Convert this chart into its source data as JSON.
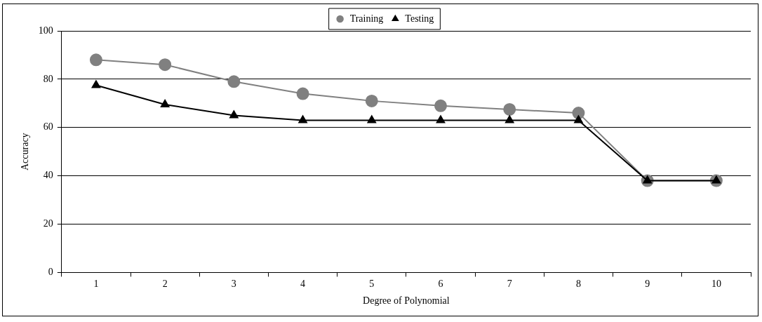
{
  "chart_data": {
    "type": "line",
    "xlabel": "Degree of Polynomial",
    "ylabel": "Accuracy",
    "categories": [
      "1",
      "2",
      "3",
      "4",
      "5",
      "6",
      "7",
      "8",
      "9",
      "10"
    ],
    "series": [
      {
        "name": "Training",
        "color": "#808080",
        "marker": "circle",
        "values": [
          88,
          86,
          79,
          74,
          71,
          69,
          67.5,
          66,
          38,
          38
        ]
      },
      {
        "name": "Testing",
        "color": "#000000",
        "marker": "triangle",
        "values": [
          77.5,
          69.5,
          65,
          63,
          63,
          63,
          63,
          63,
          38,
          38
        ]
      }
    ],
    "ylim": [
      0,
      100
    ],
    "yticks": [
      0,
      20,
      40,
      60,
      80,
      100
    ],
    "grid": "y",
    "legend": "top",
    "line_style": "solid"
  }
}
